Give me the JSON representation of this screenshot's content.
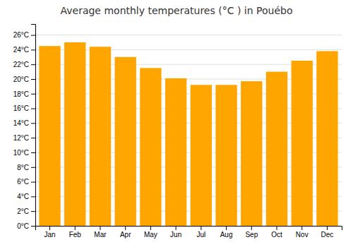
{
  "chart_data": {
    "type": "bar",
    "title": "Average monthly temperatures (°C ) in Pouébo",
    "categories": [
      "Jan",
      "Feb",
      "Mar",
      "Apr",
      "May",
      "Jun",
      "Jul",
      "Aug",
      "Sep",
      "Oct",
      "Nov",
      "Dec"
    ],
    "values": [
      24.5,
      25.0,
      24.4,
      23.0,
      21.5,
      20.1,
      19.2,
      19.2,
      19.7,
      21.0,
      22.5,
      23.8
    ],
    "color": "#FFA500",
    "ylim": [
      0,
      27.5
    ],
    "yticks": [
      {
        "value": 0,
        "label": "0°C"
      },
      {
        "value": 2,
        "label": "2°C"
      },
      {
        "value": 4,
        "label": "4°C"
      },
      {
        "value": 6,
        "label": "6°C"
      },
      {
        "value": 8,
        "label": "8°C"
      },
      {
        "value": 10,
        "label": "10°C"
      },
      {
        "value": 12,
        "label": "12°C"
      },
      {
        "value": 14,
        "label": "14°C"
      },
      {
        "value": 16,
        "label": "16°C"
      },
      {
        "value": 18,
        "label": "18°C"
      },
      {
        "value": 20,
        "label": "20°C"
      },
      {
        "value": 22,
        "label": "22°C"
      },
      {
        "value": 24,
        "label": "24°C"
      },
      {
        "value": 26,
        "label": "26°C"
      }
    ],
    "grid": true
  }
}
